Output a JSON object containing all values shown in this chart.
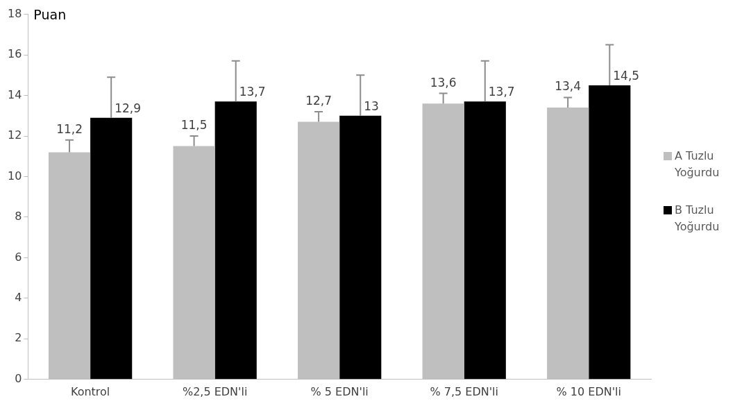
{
  "chart_data": {
    "type": "bar",
    "ylabel": "Puan",
    "categories": [
      "Kontrol",
      "%2,5 EDN'li",
      "% 5 EDN'li",
      "% 7,5 EDN'li",
      "% 10 EDN'li"
    ],
    "series": [
      {
        "name": "A Tuzlu Yoğurdu",
        "color": "#bfbfbf",
        "values": [
          11.2,
          11.5,
          12.7,
          13.6,
          13.4
        ],
        "errors": [
          0.6,
          0.5,
          0.5,
          0.5,
          0.5
        ],
        "value_labels": [
          "11,2",
          "11,5",
          "12,7",
          "13,6",
          "13,4"
        ]
      },
      {
        "name": "B Tuzlu Yoğurdu",
        "color": "#000000",
        "values": [
          12.9,
          13.7,
          13,
          13.7,
          14.5
        ],
        "errors": [
          2,
          2,
          2,
          2,
          2
        ],
        "value_labels": [
          "12,9",
          "13,7",
          "13",
          "13,7",
          "14,5"
        ]
      }
    ],
    "ylim": [
      0,
      18
    ],
    "yticks": [
      0,
      2,
      4,
      6,
      8,
      10,
      12,
      14,
      16,
      18
    ],
    "grid": false,
    "legend": "right"
  }
}
